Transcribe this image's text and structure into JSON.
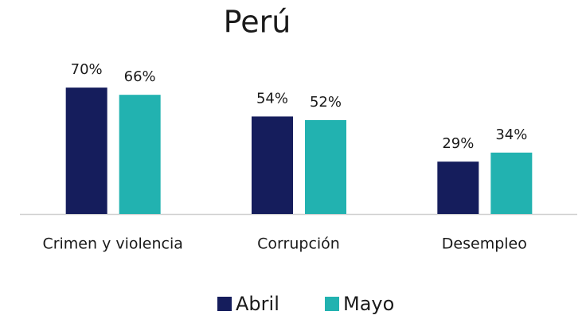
{
  "chart_data": {
    "type": "bar",
    "title": "Perú",
    "categories": [
      "Crimen y violencia",
      "Corrupción",
      "Desempleo"
    ],
    "series": [
      {
        "name": "Abril",
        "color": "#151d5c",
        "values": [
          70,
          54,
          29
        ],
        "value_labels": [
          "70%",
          "54%",
          "29%"
        ]
      },
      {
        "name": "Mayo",
        "color": "#22b2b0",
        "values": [
          66,
          52,
          34
        ],
        "value_labels": [
          "66%",
          "52%",
          "34%"
        ]
      }
    ]
  }
}
